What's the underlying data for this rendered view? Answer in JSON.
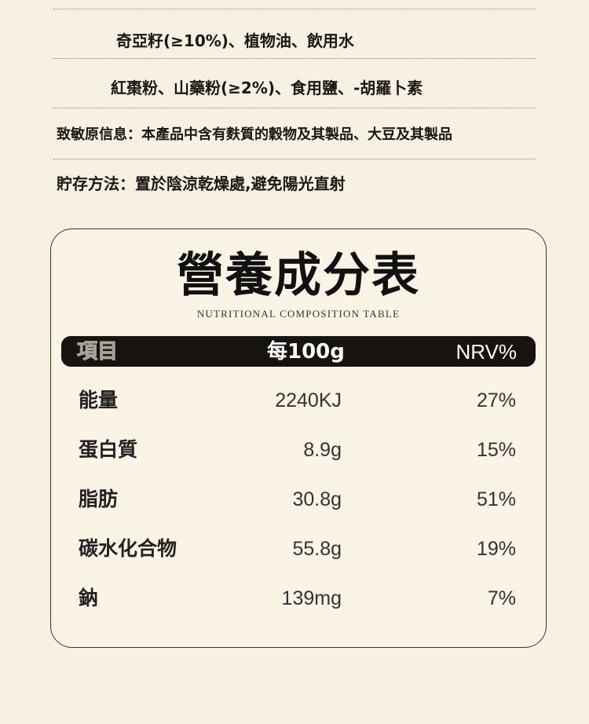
{
  "ingredients": {
    "lines": [
      "奇亞籽(≥10%)、植物油、飲用水",
      "紅棗粉、山藥粉(≥2%)、食用鹽、-胡羅卜素"
    ],
    "allergen": "致敏原信息：本產品中含有麩質的穀物及其製品、大豆及其製品",
    "storage": "貯存方法：置於陰涼乾燥處,避免陽光直射"
  },
  "table": {
    "title": "營養成分表",
    "subtitle": "NUTRITIONAL COMPOSITION TABLE",
    "headers": [
      "項目",
      "每100g",
      "NRV%"
    ],
    "rows": [
      {
        "name": "能量",
        "value": "2240KJ",
        "nrv": "27%"
      },
      {
        "name": "蛋白質",
        "value": "8.9g",
        "nrv": "15%"
      },
      {
        "name": "脂肪",
        "value": "30.8g",
        "nrv": "51%"
      },
      {
        "name": "碳水化合物",
        "value": "55.8g",
        "nrv": "19%"
      },
      {
        "name": "鈉",
        "value": "139mg",
        "nrv": "7%"
      }
    ]
  }
}
